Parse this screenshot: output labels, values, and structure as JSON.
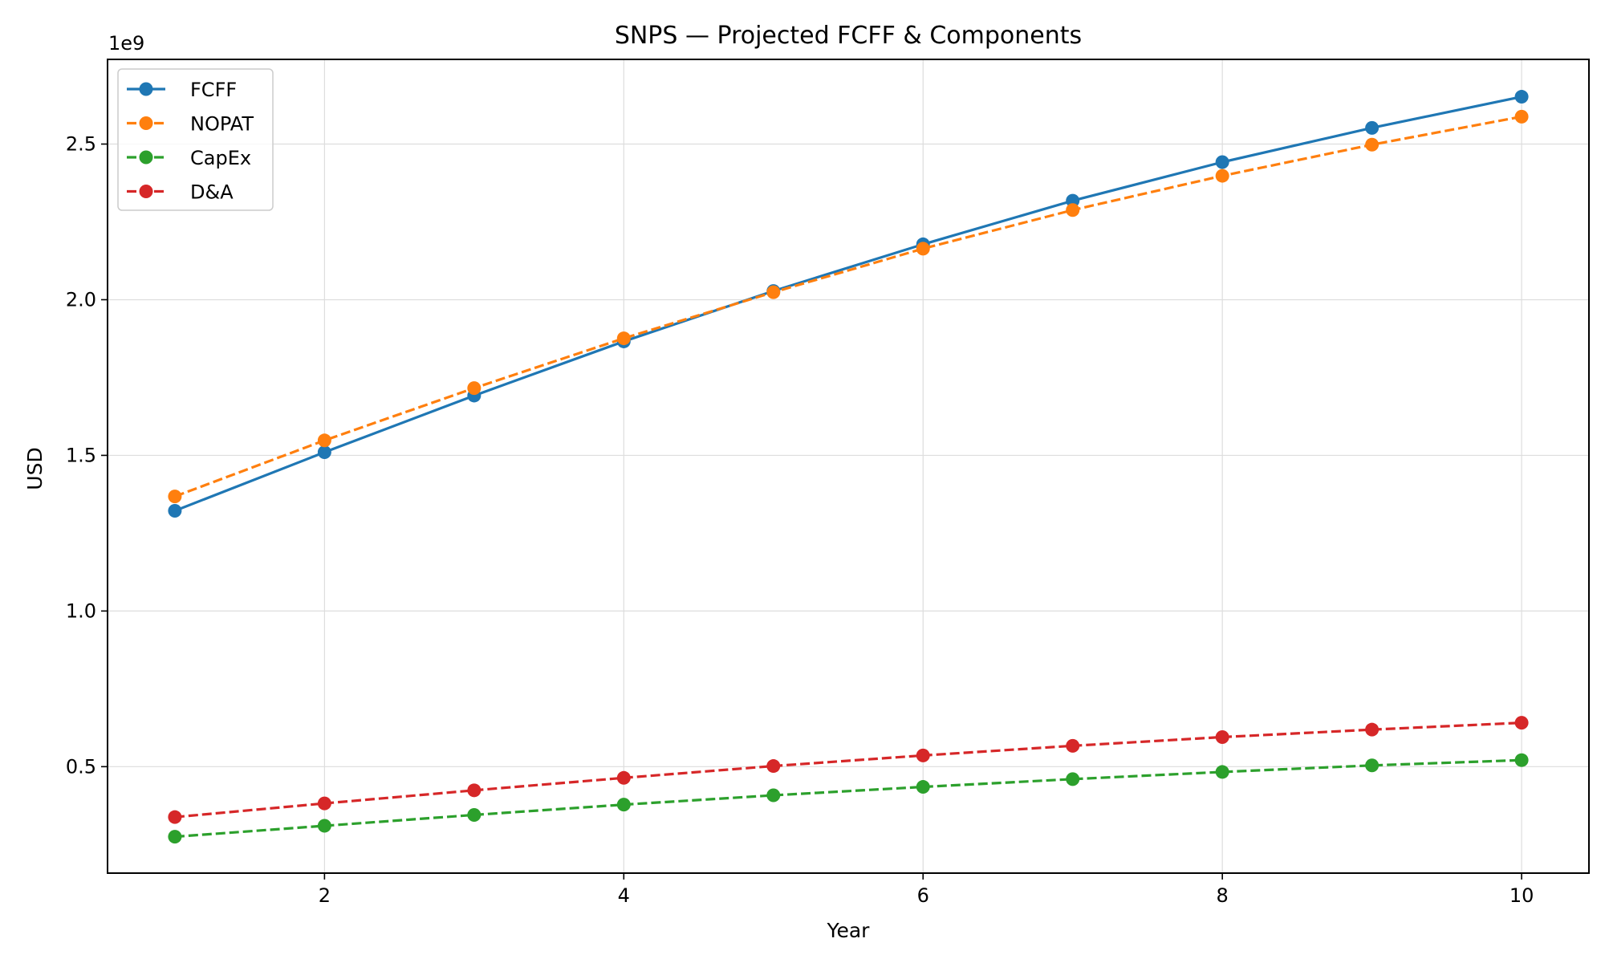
{
  "chart_data": {
    "type": "line",
    "title": "SNPS — Projected FCFF & Components",
    "xlabel": "Year",
    "ylabel": "USD",
    "y_offset_label": "1e9",
    "x": [
      1,
      2,
      3,
      4,
      5,
      6,
      7,
      8,
      9,
      10
    ],
    "xlim": [
      0.55,
      10.45
    ],
    "ylim": [
      0.158,
      2.772
    ],
    "x_ticks": [
      2,
      4,
      6,
      8,
      10
    ],
    "x_tick_labels": [
      "2",
      "4",
      "6",
      "8",
      "10"
    ],
    "y_ticks": [
      0.5,
      1.0,
      1.5,
      2.0,
      2.5
    ],
    "y_tick_labels": [
      "0.5",
      "1.0",
      "1.5",
      "2.0",
      "2.5"
    ],
    "y_scale_note": "values in units of 1e9 USD",
    "grid": true,
    "legend_position": "top-left",
    "series": [
      {
        "name": "FCFF",
        "color": "#1f77b4",
        "style": "solid",
        "values": [
          1.322,
          1.51,
          1.692,
          1.866,
          2.028,
          2.178,
          2.318,
          2.442,
          2.552,
          2.652
        ]
      },
      {
        "name": "NOPAT",
        "color": "#ff7f0e",
        "style": "dashed",
        "values": [
          1.368,
          1.548,
          1.716,
          1.876,
          2.024,
          2.164,
          2.288,
          2.398,
          2.498,
          2.588
        ]
      },
      {
        "name": "CapEx",
        "color": "#2ca02c",
        "style": "dashed",
        "values": [
          0.275,
          0.31,
          0.345,
          0.378,
          0.408,
          0.435,
          0.46,
          0.483,
          0.504,
          0.521
        ]
      },
      {
        "name": "D&A",
        "color": "#d62728",
        "style": "dashed",
        "values": [
          0.338,
          0.382,
          0.424,
          0.464,
          0.502,
          0.536,
          0.567,
          0.595,
          0.619,
          0.641
        ]
      }
    ]
  }
}
